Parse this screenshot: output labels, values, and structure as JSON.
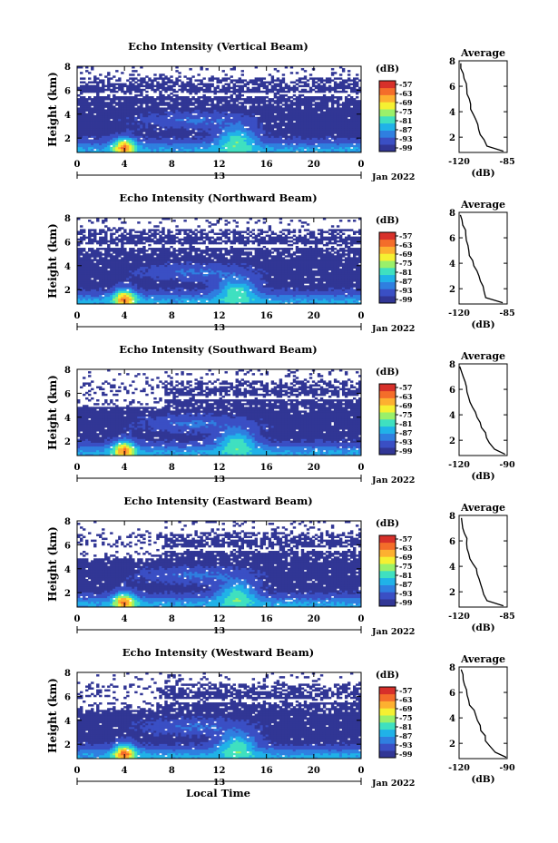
{
  "figure": {
    "xlabel": "Local Time",
    "date_label": "Jan 2022",
    "day_label": "13",
    "colorbar_unit": "(dB)",
    "colorbar_ticks": [
      "-57",
      "-63",
      "-69",
      "-75",
      "-81",
      "-87",
      "-93",
      "-99"
    ],
    "colormap": [
      "#313695",
      "#3a4fc4",
      "#2f7fe0",
      "#20b2e8",
      "#3fe0c0",
      "#9af06a",
      "#f5f032",
      "#fdb030",
      "#f46d2a",
      "#d7302a"
    ]
  },
  "chart_data": [
    {
      "type": "heatmap",
      "title": "Echo Intensity (Vertical Beam)",
      "ylabel": "Height (km)",
      "xticks": [
        "0",
        "4",
        "8",
        "12",
        "16",
        "20",
        "0"
      ],
      "xlim": [
        0,
        24
      ],
      "yticks": [
        "2",
        "4",
        "6",
        "8"
      ],
      "ylim": [
        0.8,
        8.0
      ],
      "colorbar_range_db": [
        -99,
        -57
      ],
      "profile": {
        "title": "Average",
        "xlabel": "(dB)",
        "xticks": [
          "-120",
          "-85"
        ],
        "xlim": [
          -120,
          -85
        ],
        "yticks": [
          "2",
          "4",
          "6",
          "8"
        ],
        "height_km": [
          0.9,
          1.3,
          1.8,
          2.2,
          2.6,
          3.0,
          3.4,
          3.8,
          4.2,
          4.6,
          5.0,
          5.4,
          5.8,
          6.2,
          6.6,
          7.0,
          7.4,
          7.8
        ],
        "avg_db": [
          -87,
          -99,
          -102,
          -104,
          -106,
          -107,
          -108,
          -110,
          -111,
          -112,
          -113,
          -114,
          -115,
          -114,
          -116,
          -117,
          -118,
          -119
        ]
      }
    },
    {
      "type": "heatmap",
      "title": "Echo Intensity (Northward Beam)",
      "ylabel": "Height (km)",
      "xticks": [
        "0",
        "4",
        "8",
        "12",
        "16",
        "20",
        "0"
      ],
      "xlim": [
        0,
        24
      ],
      "yticks": [
        "2",
        "4",
        "6",
        "8"
      ],
      "ylim": [
        0.8,
        8.0
      ],
      "colorbar_range_db": [
        -99,
        -57
      ],
      "profile": {
        "title": "Average",
        "xlabel": "(dB)",
        "xticks": [
          "-120",
          "-85"
        ],
        "xlim": [
          -120,
          -85
        ],
        "yticks": [
          "2",
          "4",
          "6",
          "8"
        ],
        "height_km": [
          0.9,
          1.3,
          1.8,
          2.2,
          2.6,
          3.0,
          3.4,
          3.8,
          4.2,
          4.6,
          5.0,
          5.4,
          5.8,
          6.2,
          6.6,
          7.0,
          7.4,
          7.8
        ],
        "avg_db": [
          -88,
          -100,
          -102,
          -103,
          -104,
          -106,
          -107,
          -109,
          -110,
          -112,
          -113,
          -114,
          -115,
          -115,
          -116,
          -117,
          -118,
          -119
        ]
      }
    },
    {
      "type": "heatmap",
      "title": "Echo Intensity (Southward Beam)",
      "ylabel": "Height (km)",
      "xticks": [
        "0",
        "4",
        "8",
        "12",
        "16",
        "20",
        "0"
      ],
      "xlim": [
        0,
        24
      ],
      "yticks": [
        "2",
        "4",
        "6",
        "8"
      ],
      "ylim": [
        0.8,
        8.0
      ],
      "colorbar_range_db": [
        -99,
        -57
      ],
      "profile": {
        "title": "Average",
        "xlabel": "(dB)",
        "xticks": [
          "-120",
          "-90"
        ],
        "xlim": [
          -120,
          -90
        ],
        "yticks": [
          "2",
          "4",
          "6",
          "8"
        ],
        "height_km": [
          0.9,
          1.3,
          1.8,
          2.2,
          2.6,
          3.0,
          3.4,
          3.8,
          4.2,
          4.6,
          5.0,
          5.4,
          5.8,
          6.2,
          6.6,
          7.0,
          7.4,
          7.8
        ],
        "avg_db": [
          -91,
          -98,
          -101,
          -103,
          -104,
          -106,
          -107,
          -109,
          -110,
          -112,
          -113,
          -114,
          -115,
          -116,
          -116,
          -117,
          -118,
          -119
        ]
      }
    },
    {
      "type": "heatmap",
      "title": "Echo Intensity (Eastward Beam)",
      "ylabel": "Height (km)",
      "xticks": [
        "0",
        "4",
        "8",
        "12",
        "16",
        "20",
        "0"
      ],
      "xlim": [
        0,
        24
      ],
      "yticks": [
        "2",
        "4",
        "6",
        "8"
      ],
      "ylim": [
        0.8,
        8.0
      ],
      "colorbar_range_db": [
        -99,
        -57
      ],
      "profile": {
        "title": "Average",
        "xlabel": "(dB)",
        "xticks": [
          "-120",
          "-85"
        ],
        "xlim": [
          -120,
          -85
        ],
        "yticks": [
          "2",
          "4",
          "6",
          "8"
        ],
        "height_km": [
          0.9,
          1.3,
          1.8,
          2.2,
          2.6,
          3.0,
          3.4,
          3.8,
          4.2,
          4.6,
          5.0,
          5.4,
          5.8,
          6.2,
          6.6,
          7.0,
          7.4,
          7.8
        ],
        "avg_db": [
          -87,
          -100,
          -102,
          -103,
          -105,
          -106,
          -107,
          -108,
          -110,
          -112,
          -113,
          -114,
          -115,
          -115,
          -116,
          -117,
          -118,
          -119
        ]
      }
    },
    {
      "type": "heatmap",
      "title": "Echo Intensity (Westward Beam)",
      "ylabel": "Height (km)",
      "xticks": [
        "0",
        "4",
        "8",
        "12",
        "16",
        "20",
        "0"
      ],
      "xlim": [
        0,
        24
      ],
      "yticks": [
        "2",
        "4",
        "6",
        "8"
      ],
      "ylim": [
        0.8,
        8.0
      ],
      "colorbar_range_db": [
        -99,
        -57
      ],
      "profile": {
        "title": "Average",
        "xlabel": "(dB)",
        "xticks": [
          "-120",
          "-90"
        ],
        "xlim": [
          -120,
          -90
        ],
        "yticks": [
          "2",
          "4",
          "6",
          "8"
        ],
        "height_km": [
          0.9,
          1.3,
          1.8,
          2.2,
          2.6,
          3.0,
          3.4,
          3.8,
          4.2,
          4.6,
          5.0,
          5.4,
          5.8,
          6.2,
          6.6,
          7.0,
          7.4,
          7.8
        ],
        "avg_db": [
          -91,
          -98,
          -101,
          -103,
          -104,
          -106,
          -107,
          -109,
          -110,
          -111,
          -113,
          -114,
          -115,
          -116,
          -116,
          -117,
          -118,
          -119
        ]
      }
    }
  ]
}
